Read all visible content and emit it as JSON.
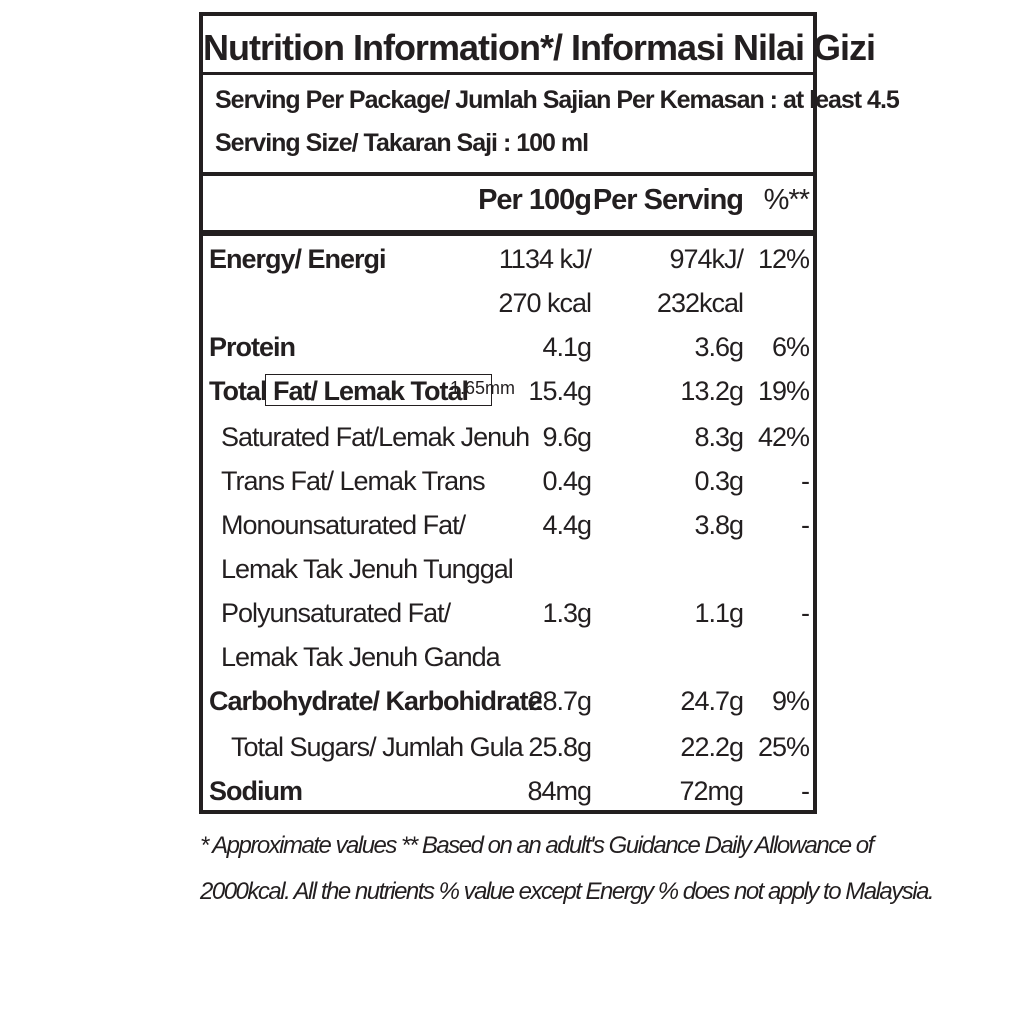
{
  "title": "Nutrition Information*/ Informasi Nilai Gizi",
  "serving": {
    "per_package": "Serving Per Package/ Jumlah Sajian Per Kemasan : at least 4.5",
    "size": "Serving Size/ Takaran Saji : 100 ml"
  },
  "columns": {
    "per100": "Per 100g",
    "serving": "Per Serving",
    "pct": "%**"
  },
  "rows": {
    "energy": {
      "name": "Energy/ Energi",
      "v1": "1134 kJ/",
      "v1b": "270 kcal",
      "v2": "974kJ/",
      "v2b": "232kcal",
      "pct": "12%"
    },
    "protein": {
      "name": "Protein",
      "v1": "4.1g",
      "v2": "3.6g",
      "pct": "6%"
    },
    "fat": {
      "name_a": "Total ",
      "name_b": "Fat/ Lemak Total",
      "annotation": "1.65mm",
      "v1": "15.4g",
      "v2": "13.2g",
      "pct": "19%"
    },
    "sat": {
      "name": "Saturated Fat/Lemak Jenuh",
      "v1": "9.6g",
      "v2": "8.3g",
      "pct": "42%"
    },
    "trans": {
      "name": "Trans Fat/ Lemak Trans",
      "v1": "0.4g",
      "v2": "0.3g",
      "pct": "-"
    },
    "mono": {
      "name": "Monounsaturated Fat/",
      "name2": "Lemak Tak Jenuh Tunggal",
      "v1": "4.4g",
      "v2": "3.8g",
      "pct": "-"
    },
    "poly": {
      "name": "Polyunsaturated Fat/",
      "name2": "Lemak Tak Jenuh Ganda",
      "v1": "1.3g",
      "v2": "1.1g",
      "pct": "-"
    },
    "carb": {
      "name": "Carbohydrate/ Karbohidrate",
      "v1": "28.7g",
      "v2": "24.7g",
      "pct": "9%"
    },
    "sugar": {
      "name": "Total Sugars/ Jumlah Gula",
      "v1": "25.8g",
      "v2": "22.2g",
      "pct": "25%"
    },
    "sodium": {
      "name": "Sodium",
      "v1": "84mg",
      "v2": "72mg",
      "pct": "-"
    }
  },
  "footnote": {
    "line1": "* Approximate values  ** Based on an adult's  Guidance Daily Allowance of",
    "line2": "2000kcal. All the nutrients % value except Energy % does not apply to Malaysia."
  }
}
